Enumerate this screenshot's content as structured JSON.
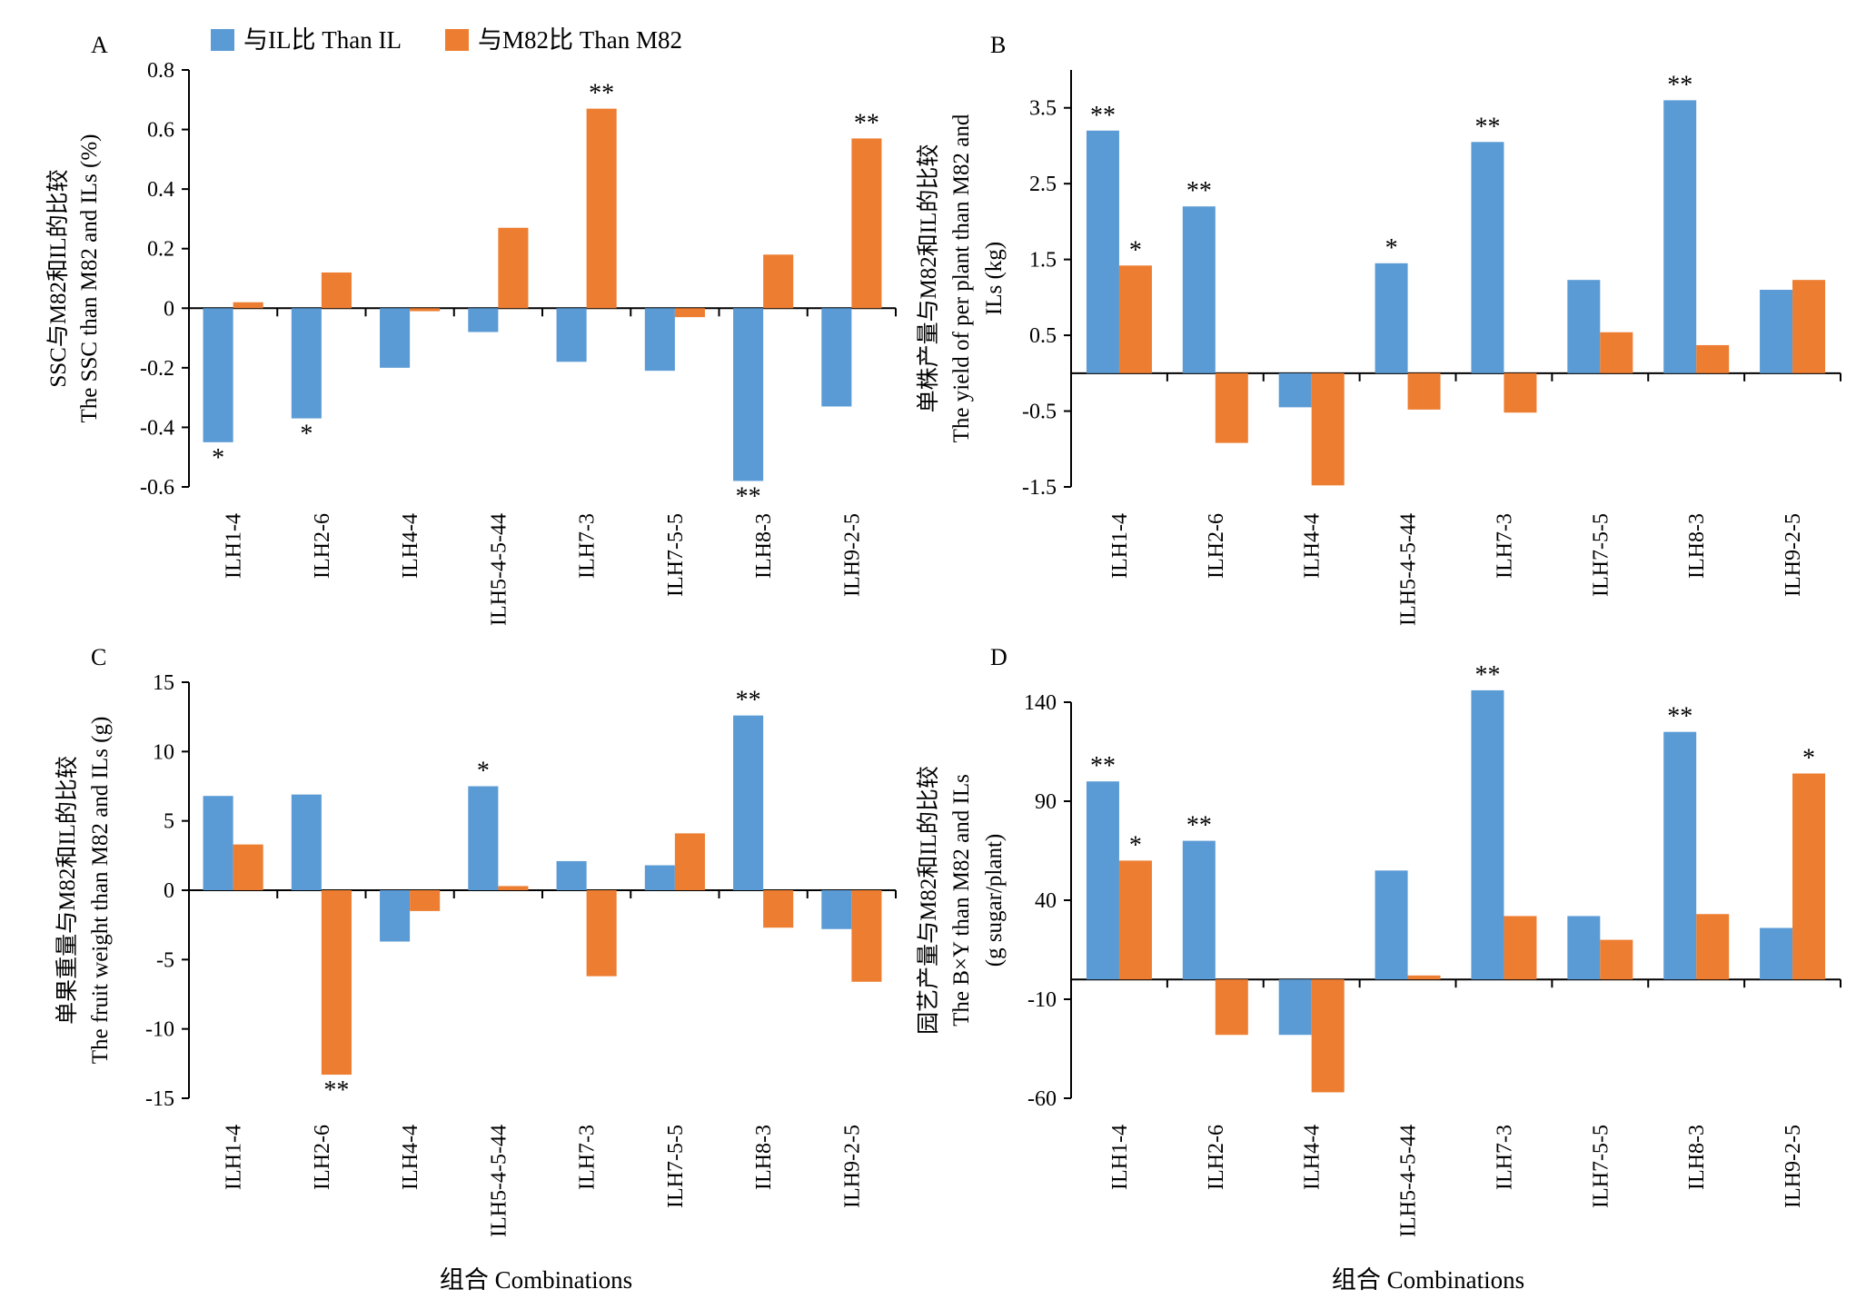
{
  "legend": [
    {
      "label": "与IL比 Than IL",
      "color": "#5B9BD5"
    },
    {
      "label": "与M82比 Than M82",
      "color": "#ED7D31"
    }
  ],
  "x_axis_title": "组合 Combinations",
  "chart_data": [
    {
      "type": "bar",
      "panel": "A",
      "categories": [
        "ILH1-4",
        "ILH2-6",
        "ILH4-4",
        "ILH5-4-5-44",
        "ILH7-3",
        "ILH7-5-5",
        "ILH8-3",
        "ILH9-2-5"
      ],
      "series": [
        {
          "name": "与IL比 Than IL",
          "color": "#5B9BD5",
          "values": [
            -0.45,
            -0.37,
            -0.2,
            -0.08,
            -0.18,
            -0.21,
            -0.58,
            -0.33
          ]
        },
        {
          "name": "与M82比 Than M82",
          "color": "#ED7D31",
          "values": [
            0.02,
            0.12,
            -0.01,
            0.27,
            0.67,
            -0.03,
            0.18,
            0.57
          ]
        }
      ],
      "significance": [
        [
          "*",
          ""
        ],
        [
          "*",
          ""
        ],
        [
          "",
          ""
        ],
        [
          "",
          ""
        ],
        [
          "",
          "**"
        ],
        [
          "",
          ""
        ],
        [
          "**",
          ""
        ],
        [
          "",
          "**"
        ]
      ],
      "ylabel": [
        "SSC与M82和IL的比较",
        "The SSC than M82 and ILs (%)"
      ],
      "ylim": [
        -0.6,
        0.8
      ],
      "yticks": [
        -0.6,
        -0.4,
        -0.2,
        0,
        0.2,
        0.4,
        0.6,
        0.8
      ],
      "ytick_labels": [
        "-0.6",
        "-0.4",
        "-0.2",
        "0",
        "0.2",
        "0.4",
        "0.6",
        "0.8"
      ]
    },
    {
      "type": "bar",
      "panel": "B",
      "categories": [
        "ILH1-4",
        "ILH2-6",
        "ILH4-4",
        "ILH5-4-5-44",
        "ILH7-3",
        "ILH7-5-5",
        "ILH8-3",
        "ILH9-2-5"
      ],
      "series": [
        {
          "name": "与IL比 Than IL",
          "color": "#5B9BD5",
          "values": [
            3.2,
            2.2,
            -0.45,
            1.45,
            3.05,
            1.23,
            3.6,
            1.1
          ]
        },
        {
          "name": "与M82比 Than M82",
          "color": "#ED7D31",
          "values": [
            1.42,
            -0.92,
            -1.48,
            -0.48,
            -0.52,
            0.54,
            0.37,
            1.23
          ]
        }
      ],
      "significance": [
        [
          "**",
          "*"
        ],
        [
          "**",
          ""
        ],
        [
          "",
          ""
        ],
        [
          "*",
          ""
        ],
        [
          "**",
          ""
        ],
        [
          "",
          ""
        ],
        [
          "**",
          ""
        ],
        [
          "",
          ""
        ]
      ],
      "ylabel": [
        "单株产量与M82和IL的比较",
        "The yield of per plant than M82 and",
        "ILs (kg)"
      ],
      "ylim": [
        -1.5,
        4
      ],
      "yticks": [
        -1.5,
        -0.5,
        0.5,
        1.5,
        2.5,
        3.5
      ],
      "ytick_labels": [
        "-1.5",
        "-0.5",
        "0.5",
        "1.5",
        "2.5",
        "3.5"
      ]
    },
    {
      "type": "bar",
      "panel": "C",
      "categories": [
        "ILH1-4",
        "ILH2-6",
        "ILH4-4",
        "ILH5-4-5-44",
        "ILH7-3",
        "ILH7-5-5",
        "ILH8-3",
        "ILH9-2-5"
      ],
      "series": [
        {
          "name": "与IL比 Than IL",
          "color": "#5B9BD5",
          "values": [
            6.8,
            6.9,
            -3.7,
            7.5,
            2.1,
            1.8,
            12.6,
            -2.8
          ]
        },
        {
          "name": "与M82比 Than M82",
          "color": "#ED7D31",
          "values": [
            3.3,
            -13.3,
            -1.5,
            0.3,
            -6.2,
            4.1,
            -2.7,
            -6.6
          ]
        }
      ],
      "significance": [
        [
          "",
          ""
        ],
        [
          "",
          "**"
        ],
        [
          "",
          ""
        ],
        [
          "*",
          ""
        ],
        [
          "",
          ""
        ],
        [
          "",
          ""
        ],
        [
          "**",
          ""
        ],
        [
          "",
          ""
        ]
      ],
      "ylabel": [
        "单果重量与M82和IL的比较",
        "The fruit weight than M82 and ILs (g)"
      ],
      "ylim": [
        -15,
        15
      ],
      "yticks": [
        -15,
        -10,
        -5,
        0,
        5,
        10,
        15
      ],
      "ytick_labels": [
        "-15",
        "-10",
        "-5",
        "0",
        "5",
        "10",
        "15"
      ]
    },
    {
      "type": "bar",
      "panel": "D",
      "categories": [
        "ILH1-4",
        "ILH2-6",
        "ILH4-4",
        "ILH5-4-5-44",
        "ILH7-3",
        "ILH7-5-5",
        "ILH8-3",
        "ILH9-2-5"
      ],
      "series": [
        {
          "name": "与IL比 Than IL",
          "color": "#5B9BD5",
          "values": [
            100,
            70,
            -28,
            55,
            146,
            32,
            125,
            26
          ]
        },
        {
          "name": "与M82比 Than M82",
          "color": "#ED7D31",
          "values": [
            60,
            -28,
            -57,
            2,
            32,
            20,
            33,
            104
          ]
        }
      ],
      "significance": [
        [
          "**",
          "*"
        ],
        [
          "**",
          ""
        ],
        [
          "",
          ""
        ],
        [
          "",
          ""
        ],
        [
          "**",
          ""
        ],
        [
          "",
          ""
        ],
        [
          "**",
          ""
        ],
        [
          "",
          "*"
        ]
      ],
      "ylabel": [
        "园艺产量与M82和IL的比较",
        "The B×Y  than M82 and ILs",
        "(g sugar/plant)"
      ],
      "ylim": [
        -60,
        140
      ],
      "yticks": [
        -60,
        -10,
        40,
        90,
        140
      ],
      "ytick_labels": [
        "-60",
        "-10",
        "40",
        "90",
        "140"
      ]
    }
  ]
}
